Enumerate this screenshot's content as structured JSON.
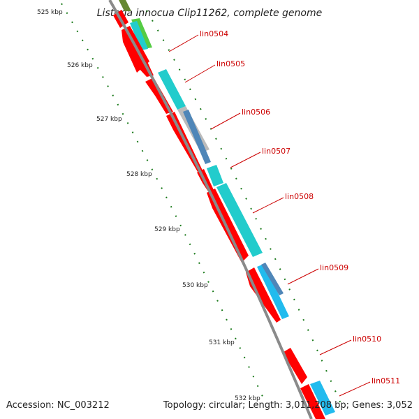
{
  "title": "Listeria innocua Clip11262, complete genome",
  "footer": {
    "accession": "Accession: NC_003212",
    "stats": "Topology: circular; Length: 3,011,208 bp; Genes: 3,052"
  },
  "ticks": [
    "525 kbp",
    "526 kbp",
    "527 kbp",
    "528 kbp",
    "529 kbp",
    "530 kbp",
    "531 kbp",
    "532 kbp"
  ],
  "genes": [
    {
      "label": "lin0504"
    },
    {
      "label": "lin0505"
    },
    {
      "label": "lin0506"
    },
    {
      "label": "lin0507"
    },
    {
      "label": "lin0508"
    },
    {
      "label": "lin0509"
    },
    {
      "label": "lin0510"
    },
    {
      "label": "lin0511"
    }
  ],
  "colors": {
    "backbone": "#8a8a8a",
    "forward_gene": "#ff0000",
    "cog_cyan": "#22cccc",
    "cog_blue": "#4f86b8",
    "cog_light_blue": "#22bbee",
    "cog_gray": "#bbbbbb",
    "cog_green": "#55cc44",
    "cog_olive": "#668833",
    "tick": "#1a7a1a",
    "label": "#cc0000"
  }
}
